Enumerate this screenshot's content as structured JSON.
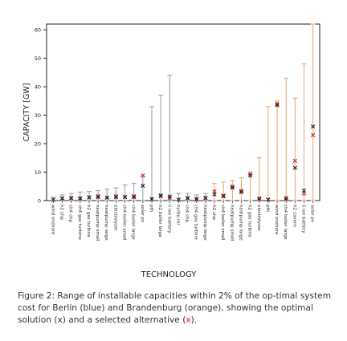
{
  "chart_data": {
    "type": "range",
    "ylabel": "CAPACITY [GW]",
    "xlabel": "TECHNOLOGY",
    "ylim": [
      0,
      62
    ],
    "yticks": [
      0,
      10,
      20,
      30,
      40,
      50,
      60
    ],
    "grid": false,
    "colors": {
      "berlin": "#8c9bb5",
      "brandenburg": "#e8a36c",
      "optimal": "#222222",
      "alternative": "#d62728"
    },
    "series": [
      {
        "name": "Berlin",
        "region": "berlin",
        "categories": [
          "wind onshore",
          "h2 chp",
          "ch4 chp",
          "ch4 gas turbine",
          "h2 gas turbine",
          "heatpump small",
          "heatpump large",
          "electrolyzer",
          "ch4 boiler small",
          "ch4 boiler large",
          "solar pv",
          "pth",
          "h2 boiler large",
          "li ion battery",
          "hydro ror",
          "ch4 chp",
          "ch4 gas turbine",
          "heatpump large"
        ],
        "min": [
          0,
          0,
          0,
          0,
          0,
          0,
          0,
          0,
          0,
          0,
          0,
          0,
          0,
          0,
          0,
          0,
          0,
          0
        ],
        "max": [
          1.2,
          2.0,
          2.5,
          3.0,
          3.2,
          3.5,
          4.0,
          4.5,
          5.5,
          6.0,
          8.5,
          33,
          37,
          44,
          2.5,
          2.5,
          2.0,
          2.5
        ],
        "optimal": [
          0.3,
          0.7,
          0.8,
          0.8,
          1.1,
          1.2,
          1.1,
          1.2,
          1.3,
          1.2,
          5.2,
          0.5,
          1.8,
          1.4,
          0.3,
          0.8,
          0.6,
          1.0
        ],
        "alternative": [
          0.3,
          0.8,
          1.0,
          0.6,
          1.2,
          1.6,
          1.0,
          1.5,
          1.2,
          1.6,
          8.8,
          0.6,
          1.5,
          0.8,
          0.3,
          1.0,
          0.3,
          0.8
        ]
      },
      {
        "name": "Brandenburg",
        "region": "brandenburg",
        "categories": [
          "h2 chp",
          "ch4 boiler small",
          "heatpump small",
          "heatpump large",
          "h2 gas turbine",
          "electrolyzer",
          "pth",
          "wind onshore",
          "ch4 boiler large",
          "h2 cavern",
          "li ion battery",
          "solar pv"
        ],
        "min": [
          0,
          0,
          0,
          0,
          0,
          0,
          0,
          0,
          0,
          0,
          0,
          0
        ],
        "max": [
          6.0,
          6.5,
          7.0,
          8.0,
          9.0,
          15,
          33,
          35,
          43,
          36,
          48,
          62
        ],
        "optimal": [
          2.2,
          1.5,
          4.5,
          3.0,
          8.8,
          0.5,
          0.3,
          33.5,
          0.5,
          11.5,
          3.5,
          26
        ],
        "alternative": [
          3.2,
          1.8,
          5.0,
          3.5,
          9.5,
          0.8,
          0.4,
          34.0,
          1.0,
          14.0,
          2.5,
          23
        ]
      }
    ],
    "tick_labels": [
      "wind onshore",
      "h2 chp",
      "ch4 chp",
      "ch4 gas turbine",
      "h2 gas turbine",
      "heatpump small",
      "heatpump large",
      "electrolyzer",
      "ch4 boiler small",
      "ch4 boiler large",
      "solar pv",
      "pth",
      "h2 boiler large",
      "li ion battery",
      "hydro ror",
      "ch4 chp",
      "ch4 gas turbine",
      "heatpump large",
      "h2 chp",
      "ch4 boiler small",
      "heatpump small",
      "heatpump large",
      "h2 gas turbine",
      "electrolyzer",
      "pth",
      "wind onshore",
      "ch4 boiler large",
      "h2 cavern",
      "li ion battery",
      "solar pv"
    ]
  },
  "caption": {
    "part1": "Figure 2: Range of installable capacities within 2% of the op-timal system cost for Berlin (blue) and Brandenburg (orange), showing the optimal solution (x) and a selected alternative (",
    "alt_marker": "x",
    "part2": ")."
  }
}
